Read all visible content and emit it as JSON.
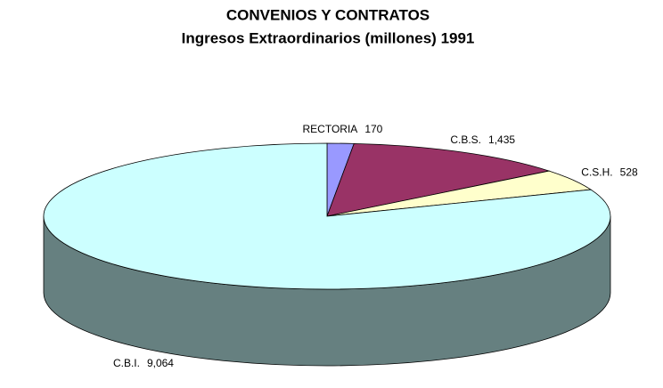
{
  "chart_data": {
    "type": "pie3d",
    "title": "CONVENIOS Y CONTRATOS",
    "subtitle": "Ingresos Extraordinarios (millones) 1991",
    "categories": [
      "RECTORIA",
      "C.B.S.",
      "C.S.H.",
      "C.B.I."
    ],
    "values": [
      170,
      1435,
      528,
      9064
    ],
    "value_labels": [
      "170",
      "1,435",
      "528",
      "9,064"
    ],
    "colors": [
      "#9999ff",
      "#993366",
      "#ffffcc",
      "#ccffff"
    ]
  }
}
